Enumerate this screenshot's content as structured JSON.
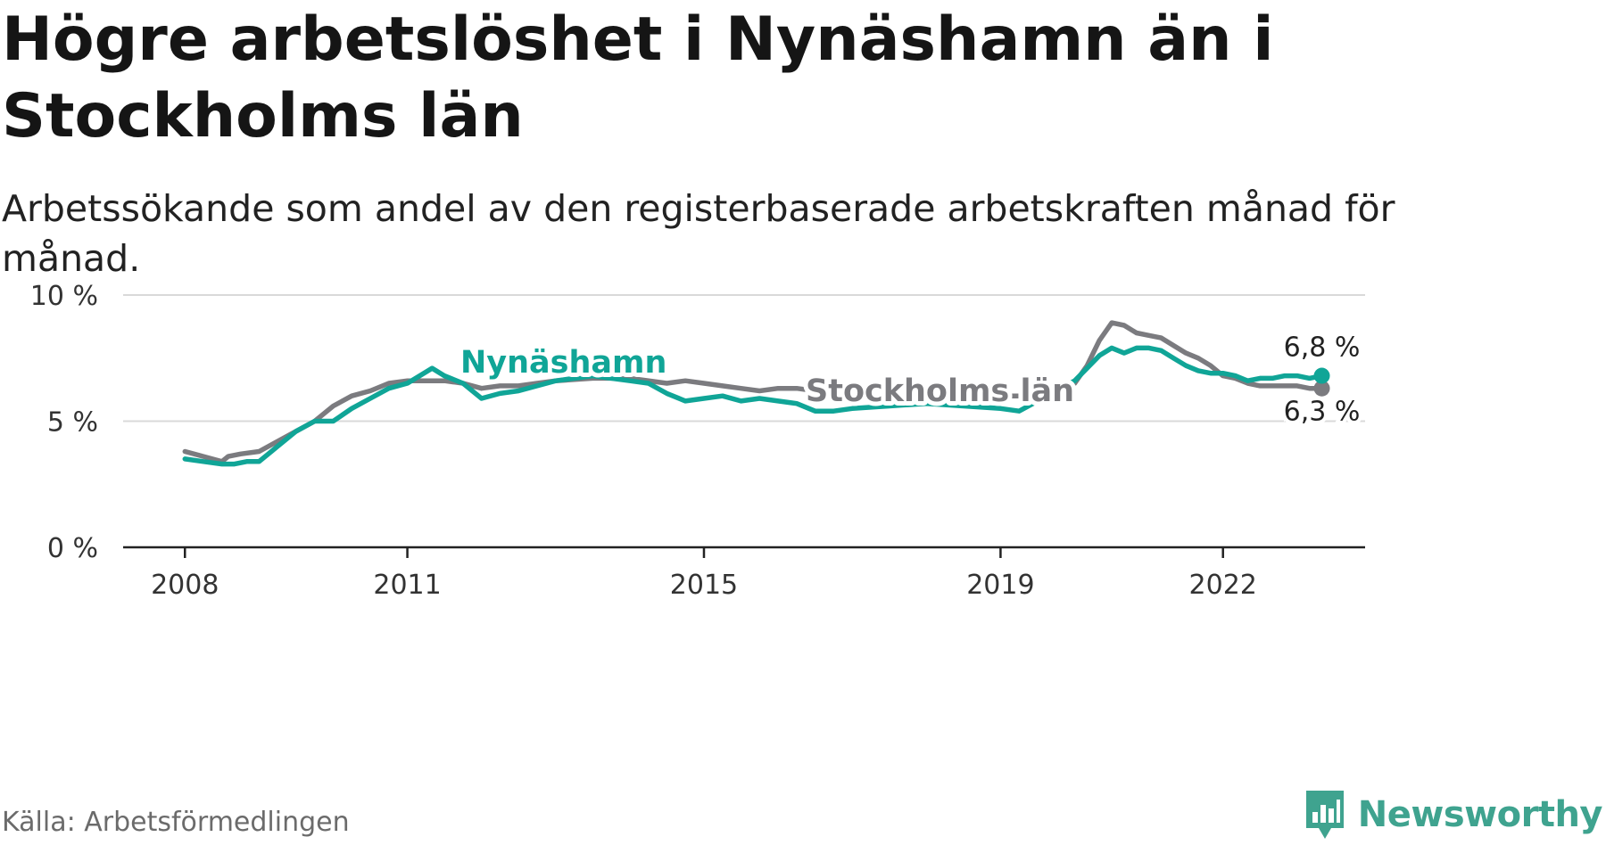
{
  "title": "Högre arbetslöshet i Nynäshamn än i Stockholms län",
  "subtitle": "Arbetssökande som andel av den registerbaserade arbetskraften månad för månad.",
  "source": "Källa: Arbetsförmedlingen",
  "brand": {
    "name": "Newsworthy",
    "icon": "newsworthy-logo-icon",
    "color": "#3fa38f"
  },
  "chart_data": {
    "type": "line",
    "title": "Högre arbetslöshet i Nynäshamn än i Stockholms län",
    "subtitle": "Arbetssökande som andel av den registerbaserade arbetskraften månad för månad.",
    "xlabel": "",
    "ylabel": "",
    "x_ticks": [
      "2008",
      "2011",
      "2015",
      "2019",
      "2022"
    ],
    "y_ticks": [
      "0 %",
      "5 %",
      "10 %"
    ],
    "ylim": [
      0,
      10
    ],
    "xlim": [
      "2007-03",
      "2023-12"
    ],
    "grid": true,
    "series": [
      {
        "name": "Stockholms län",
        "color": "#7b7b7f",
        "end_label": "6,3 %",
        "points": [
          [
            "2008-01",
            3.8
          ],
          [
            "2008-04",
            3.6
          ],
          [
            "2008-07",
            3.4
          ],
          [
            "2008-08",
            3.6
          ],
          [
            "2008-10",
            3.7
          ],
          [
            "2009-01",
            3.8
          ],
          [
            "2009-04",
            4.2
          ],
          [
            "2009-07",
            4.6
          ],
          [
            "2009-10",
            5.0
          ],
          [
            "2010-01",
            5.6
          ],
          [
            "2010-04",
            6.0
          ],
          [
            "2010-07",
            6.2
          ],
          [
            "2010-10",
            6.5
          ],
          [
            "2011-01",
            6.6
          ],
          [
            "2011-04",
            6.6
          ],
          [
            "2011-07",
            6.6
          ],
          [
            "2011-10",
            6.5
          ],
          [
            "2012-01",
            6.3
          ],
          [
            "2012-04",
            6.4
          ],
          [
            "2012-07",
            6.4
          ],
          [
            "2012-10",
            6.5
          ],
          [
            "2013-01",
            6.6
          ],
          [
            "2013-07",
            6.7
          ],
          [
            "2014-01",
            6.7
          ],
          [
            "2014-07",
            6.5
          ],
          [
            "2014-10",
            6.6
          ],
          [
            "2015-01",
            6.5
          ],
          [
            "2015-04",
            6.4
          ],
          [
            "2015-07",
            6.3
          ],
          [
            "2015-10",
            6.2
          ],
          [
            "2016-01",
            6.3
          ],
          [
            "2016-04",
            6.3
          ],
          [
            "2016-07",
            6.2
          ],
          [
            "2016-10",
            6.1
          ],
          [
            "2017-01",
            6.0
          ],
          [
            "2017-07",
            6.0
          ],
          [
            "2018-01",
            6.0
          ],
          [
            "2018-07",
            6.0
          ],
          [
            "2019-01",
            6.0
          ],
          [
            "2019-04",
            6.0
          ],
          [
            "2019-07",
            6.1
          ],
          [
            "2019-10",
            6.2
          ],
          [
            "2020-01",
            6.5
          ],
          [
            "2020-03",
            7.2
          ],
          [
            "2020-05",
            8.2
          ],
          [
            "2020-07",
            8.9
          ],
          [
            "2020-09",
            8.8
          ],
          [
            "2020-11",
            8.5
          ],
          [
            "2021-01",
            8.4
          ],
          [
            "2021-03",
            8.3
          ],
          [
            "2021-05",
            8.0
          ],
          [
            "2021-07",
            7.7
          ],
          [
            "2021-09",
            7.5
          ],
          [
            "2021-11",
            7.2
          ],
          [
            "2022-01",
            6.8
          ],
          [
            "2022-03",
            6.7
          ],
          [
            "2022-05",
            6.5
          ],
          [
            "2022-07",
            6.4
          ],
          [
            "2022-09",
            6.4
          ],
          [
            "2022-11",
            6.4
          ],
          [
            "2023-01",
            6.4
          ],
          [
            "2023-03",
            6.3
          ],
          [
            "2023-05",
            6.3
          ]
        ]
      },
      {
        "name": "Nynäshamn",
        "color": "#10a597",
        "end_label": "6,8 %",
        "points": [
          [
            "2008-01",
            3.5
          ],
          [
            "2008-04",
            3.4
          ],
          [
            "2008-07",
            3.3
          ],
          [
            "2008-09",
            3.3
          ],
          [
            "2008-11",
            3.4
          ],
          [
            "2009-01",
            3.4
          ],
          [
            "2009-04",
            4.0
          ],
          [
            "2009-07",
            4.6
          ],
          [
            "2009-10",
            5.0
          ],
          [
            "2010-01",
            5.0
          ],
          [
            "2010-04",
            5.5
          ],
          [
            "2010-07",
            5.9
          ],
          [
            "2010-10",
            6.3
          ],
          [
            "2011-01",
            6.5
          ],
          [
            "2011-03",
            6.8
          ],
          [
            "2011-05",
            7.1
          ],
          [
            "2011-07",
            6.8
          ],
          [
            "2011-10",
            6.5
          ],
          [
            "2012-01",
            5.9
          ],
          [
            "2012-04",
            6.1
          ],
          [
            "2012-07",
            6.2
          ],
          [
            "2012-10",
            6.4
          ],
          [
            "2013-01",
            6.6
          ],
          [
            "2013-07",
            6.8
          ],
          [
            "2014-01",
            6.6
          ],
          [
            "2014-04",
            6.5
          ],
          [
            "2014-07",
            6.1
          ],
          [
            "2014-10",
            5.8
          ],
          [
            "2015-01",
            5.9
          ],
          [
            "2015-04",
            6.0
          ],
          [
            "2015-07",
            5.8
          ],
          [
            "2015-10",
            5.9
          ],
          [
            "2016-01",
            5.8
          ],
          [
            "2016-04",
            5.7
          ],
          [
            "2016-07",
            5.4
          ],
          [
            "2016-10",
            5.4
          ],
          [
            "2017-01",
            5.5
          ],
          [
            "2017-07",
            5.6
          ],
          [
            "2018-01",
            5.7
          ],
          [
            "2018-07",
            5.6
          ],
          [
            "2019-01",
            5.5
          ],
          [
            "2019-04",
            5.4
          ],
          [
            "2019-07",
            5.8
          ],
          [
            "2019-10",
            6.2
          ],
          [
            "2020-01",
            6.6
          ],
          [
            "2020-03",
            7.1
          ],
          [
            "2020-05",
            7.6
          ],
          [
            "2020-07",
            7.9
          ],
          [
            "2020-09",
            7.7
          ],
          [
            "2020-11",
            7.9
          ],
          [
            "2021-01",
            7.9
          ],
          [
            "2021-03",
            7.8
          ],
          [
            "2021-05",
            7.5
          ],
          [
            "2021-07",
            7.2
          ],
          [
            "2021-09",
            7.0
          ],
          [
            "2021-11",
            6.9
          ],
          [
            "2022-01",
            6.9
          ],
          [
            "2022-03",
            6.8
          ],
          [
            "2022-05",
            6.6
          ],
          [
            "2022-07",
            6.7
          ],
          [
            "2022-09",
            6.7
          ],
          [
            "2022-11",
            6.8
          ],
          [
            "2023-01",
            6.8
          ],
          [
            "2023-03",
            6.7
          ],
          [
            "2023-05",
            6.8
          ]
        ]
      }
    ]
  }
}
